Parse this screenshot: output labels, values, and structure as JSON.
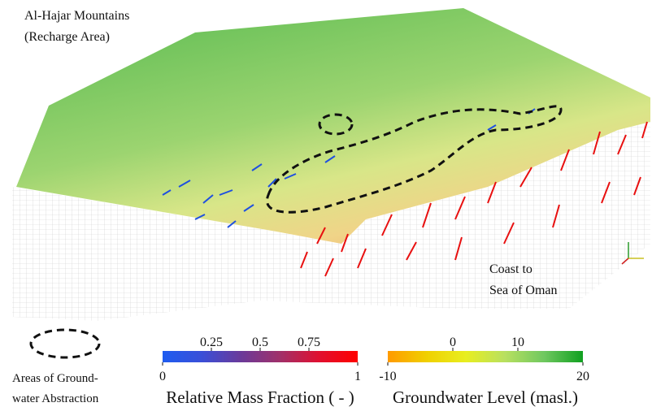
{
  "labels": {
    "mountains": [
      "Al-Hajar Mountains",
      "(Recharge Area)"
    ],
    "coast": [
      "Coast to",
      "Sea of Oman"
    ]
  },
  "legend": {
    "abstraction": [
      "Areas of Ground-",
      "water Abstraction"
    ]
  },
  "colorbars": [
    {
      "title": "Relative Mass Fraction ( - )",
      "range": [
        0,
        1
      ],
      "ticks_top": [
        0.25,
        0.5,
        0.75
      ],
      "ticks_bottom": [
        0,
        1
      ],
      "colors": [
        "#1e5cf0",
        "#3a4fd8",
        "#6a3a9a",
        "#a0306a",
        "#e01030",
        "#ff0000"
      ]
    },
    {
      "title": "Groundwater Level (masl.)",
      "range": [
        -10,
        20
      ],
      "ticks_top": [
        0,
        10
      ],
      "ticks_bottom": [
        -10,
        20
      ],
      "colors": [
        "#ff9a00",
        "#f0d000",
        "#e8ee20",
        "#b8e060",
        "#70c860",
        "#10a020"
      ]
    }
  ]
}
